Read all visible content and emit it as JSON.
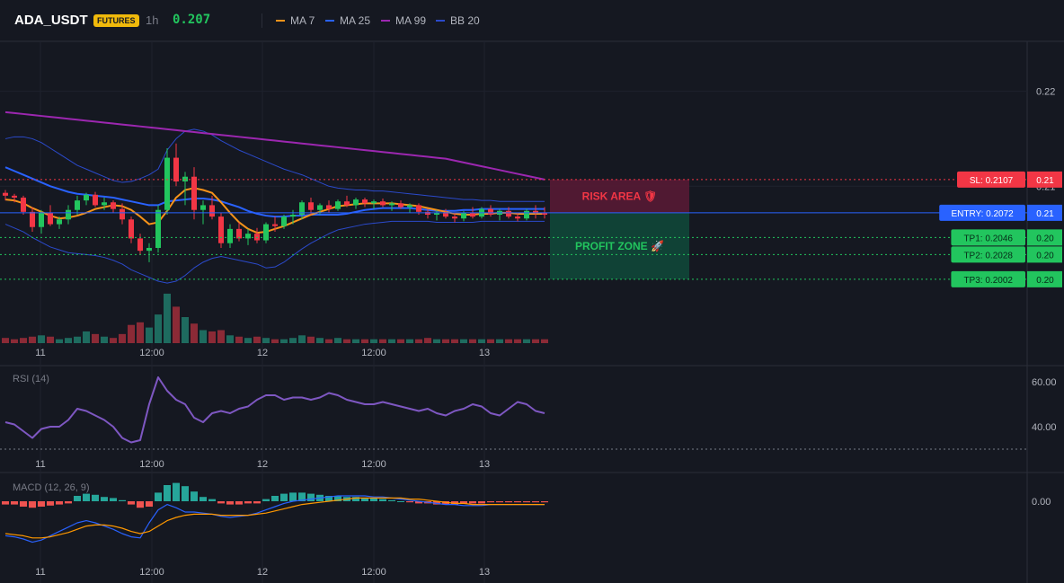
{
  "header": {
    "symbol": "ADA_USDT",
    "badge": "FUTURES",
    "timeframe": "1h",
    "last_price": "0.207",
    "legend": [
      {
        "name": "MA 7",
        "color": "#f7931a"
      },
      {
        "name": "MA 25",
        "color": "#2962ff"
      },
      {
        "name": "MA 99",
        "color": "#9c27b0"
      },
      {
        "name": "BB 20",
        "color": "#2b4acb"
      }
    ]
  },
  "chart_data": [
    {
      "type": "candlestick",
      "title": "ADA_USDT",
      "ylim": [
        0.1965,
        0.2245
      ],
      "price_ticks": [
        "0.22",
        "0.21"
      ],
      "time_ticks": [
        "11",
        "12:00",
        "12",
        "12:00",
        "13"
      ],
      "colors": {
        "up": "#22c55e",
        "down": "#f23645",
        "vol_up": "#1e6b5f",
        "vol_down": "#8b2a36"
      },
      "candles": [
        [
          0.2093,
          0.2096,
          0.2085,
          0.209,
          0.4
        ],
        [
          0.209,
          0.2092,
          0.2083,
          0.2088,
          0.3
        ],
        [
          0.2088,
          0.209,
          0.207,
          0.2073,
          0.4
        ],
        [
          0.2073,
          0.2078,
          0.2052,
          0.2057,
          0.5
        ],
        [
          0.2057,
          0.2075,
          0.205,
          0.2072,
          0.6
        ],
        [
          0.2072,
          0.208,
          0.2058,
          0.206,
          0.5
        ],
        [
          0.206,
          0.2068,
          0.2055,
          0.2065,
          0.3
        ],
        [
          0.2065,
          0.208,
          0.206,
          0.2075,
          0.4
        ],
        [
          0.2075,
          0.209,
          0.207,
          0.2085,
          0.5
        ],
        [
          0.2085,
          0.2093,
          0.208,
          0.2091,
          0.9
        ],
        [
          0.2091,
          0.2094,
          0.2078,
          0.208,
          0.7
        ],
        [
          0.208,
          0.2088,
          0.2075,
          0.2083,
          0.5
        ],
        [
          0.2083,
          0.2085,
          0.2072,
          0.2076,
          0.4
        ],
        [
          0.2076,
          0.2082,
          0.206,
          0.2065,
          0.7
        ],
        [
          0.2065,
          0.2068,
          0.204,
          0.2045,
          1.4
        ],
        [
          0.2045,
          0.205,
          0.2028,
          0.2032,
          1.6
        ],
        [
          0.2032,
          0.204,
          0.202,
          0.2035,
          1.2
        ],
        [
          0.2035,
          0.208,
          0.203,
          0.2075,
          2.2
        ],
        [
          0.2075,
          0.214,
          0.207,
          0.213,
          3.8
        ],
        [
          0.213,
          0.2145,
          0.21,
          0.2105,
          2.8
        ],
        [
          0.2105,
          0.2115,
          0.208,
          0.211,
          2.0
        ],
        [
          0.211,
          0.212,
          0.2065,
          0.2075,
          1.5
        ],
        [
          0.2075,
          0.2085,
          0.206,
          0.208,
          1.0
        ],
        [
          0.208,
          0.209,
          0.2065,
          0.2068,
          0.9
        ],
        [
          0.2068,
          0.2072,
          0.2035,
          0.204,
          1.0
        ],
        [
          0.204,
          0.206,
          0.2035,
          0.2055,
          0.6
        ],
        [
          0.2055,
          0.2062,
          0.2042,
          0.2045,
          0.5
        ],
        [
          0.2045,
          0.2055,
          0.2038,
          0.205,
          0.4
        ],
        [
          0.205,
          0.2056,
          0.204,
          0.2043,
          0.5
        ],
        [
          0.2043,
          0.2062,
          0.204,
          0.206,
          0.4
        ],
        [
          0.206,
          0.2068,
          0.2052,
          0.2058,
          0.3
        ],
        [
          0.2058,
          0.207,
          0.2055,
          0.2068,
          0.3
        ],
        [
          0.2068,
          0.2075,
          0.206,
          0.207,
          0.4
        ],
        [
          0.207,
          0.2085,
          0.2065,
          0.2083,
          0.6
        ],
        [
          0.2083,
          0.2088,
          0.207,
          0.2075,
          0.5
        ],
        [
          0.2075,
          0.2082,
          0.207,
          0.208,
          0.4
        ],
        [
          0.208,
          0.2085,
          0.2072,
          0.2076,
          0.3
        ],
        [
          0.2076,
          0.2086,
          0.2074,
          0.2084,
          0.4
        ],
        [
          0.2084,
          0.209,
          0.2078,
          0.208,
          0.3
        ],
        [
          0.208,
          0.2088,
          0.2076,
          0.2086,
          0.3
        ],
        [
          0.2086,
          0.2088,
          0.2078,
          0.2082,
          0.3
        ],
        [
          0.2082,
          0.2086,
          0.2076,
          0.2084,
          0.3
        ],
        [
          0.2084,
          0.2087,
          0.2078,
          0.208,
          0.3
        ],
        [
          0.208,
          0.2084,
          0.2074,
          0.2082,
          0.3
        ],
        [
          0.2082,
          0.2085,
          0.2076,
          0.2078,
          0.3
        ],
        [
          0.2078,
          0.2082,
          0.2072,
          0.208,
          0.3
        ],
        [
          0.208,
          0.2082,
          0.207,
          0.2073,
          0.3
        ],
        [
          0.2073,
          0.2076,
          0.2066,
          0.207,
          0.4
        ],
        [
          0.207,
          0.2075,
          0.2064,
          0.2072,
          0.3
        ],
        [
          0.2072,
          0.2076,
          0.2066,
          0.2068,
          0.3
        ],
        [
          0.2068,
          0.2072,
          0.2062,
          0.2066,
          0.3
        ],
        [
          0.2066,
          0.2074,
          0.2063,
          0.2072,
          0.3
        ],
        [
          0.2072,
          0.2078,
          0.2066,
          0.2068,
          0.3
        ],
        [
          0.2068,
          0.2078,
          0.2066,
          0.2076,
          0.3
        ],
        [
          0.2076,
          0.208,
          0.2068,
          0.207,
          0.3
        ],
        [
          0.207,
          0.2076,
          0.2064,
          0.2074,
          0.3
        ],
        [
          0.2074,
          0.2078,
          0.2066,
          0.2068,
          0.3
        ],
        [
          0.2068,
          0.2072,
          0.2063,
          0.2066,
          0.3
        ],
        [
          0.2066,
          0.2076,
          0.2064,
          0.2074,
          0.3
        ],
        [
          0.2074,
          0.208,
          0.2066,
          0.2072,
          0.3
        ],
        [
          0.2072,
          0.2078,
          0.2066,
          0.207,
          0.3
        ]
      ],
      "ma7": [
        0.2086,
        0.2085,
        0.2082,
        0.2077,
        0.2073,
        0.2069,
        0.2066,
        0.2067,
        0.2069,
        0.2072,
        0.2076,
        0.2078,
        0.208,
        0.2079,
        0.2075,
        0.2068,
        0.206,
        0.2062,
        0.2074,
        0.2088,
        0.2096,
        0.2098,
        0.2096,
        0.2093,
        0.2083,
        0.2072,
        0.2062,
        0.2055,
        0.2051,
        0.2052,
        0.2055,
        0.2058,
        0.2062,
        0.2066,
        0.207,
        0.2073,
        0.2076,
        0.2079,
        0.208,
        0.2081,
        0.2082,
        0.2082,
        0.2082,
        0.2082,
        0.2081,
        0.208,
        0.2079,
        0.2077,
        0.2075,
        0.2073,
        0.2071,
        0.207,
        0.207,
        0.2071,
        0.2071,
        0.2072,
        0.2072,
        0.2071,
        0.2071,
        0.2071,
        0.2071
      ],
      "ma25": [
        0.212,
        0.2116,
        0.2112,
        0.2108,
        0.2104,
        0.21,
        0.2097,
        0.2094,
        0.2092,
        0.2091,
        0.209,
        0.2089,
        0.2088,
        0.2086,
        0.2084,
        0.2082,
        0.208,
        0.208,
        0.2084,
        0.2085,
        0.2086,
        0.2087,
        0.2087,
        0.2086,
        0.2084,
        0.2081,
        0.2078,
        0.2074,
        0.2071,
        0.2069,
        0.2068,
        0.2068,
        0.2069,
        0.2069,
        0.207,
        0.207,
        0.207,
        0.207,
        0.2071,
        0.2073,
        0.2075,
        0.2076,
        0.2077,
        0.2077,
        0.2077,
        0.2077,
        0.2076,
        0.2075,
        0.2074,
        0.2074,
        0.2074,
        0.2075,
        0.2075,
        0.2076,
        0.2076,
        0.2076,
        0.2076,
        0.2076,
        0.2076,
        0.2076,
        0.2076
      ],
      "ma99": [
        0.2178,
        0.2177,
        0.2176,
        0.2175,
        0.2174,
        0.2173,
        0.2172,
        0.2171,
        0.217,
        0.2169,
        0.2168,
        0.2167,
        0.2166,
        0.2165,
        0.2164,
        0.2163,
        0.2162,
        0.2161,
        0.216,
        0.2159,
        0.2158,
        0.2157,
        0.2156,
        0.2155,
        0.2154,
        0.2153,
        0.2152,
        0.2151,
        0.215,
        0.2149,
        0.2148,
        0.2147,
        0.2146,
        0.2145,
        0.2144,
        0.2143,
        0.2142,
        0.2141,
        0.214,
        0.2139,
        0.2138,
        0.2137,
        0.2136,
        0.2135,
        0.2134,
        0.2133,
        0.2132,
        0.2131,
        0.213,
        0.2129,
        0.2127,
        0.2125,
        0.2123,
        0.2121,
        0.2119,
        0.2117,
        0.2115,
        0.2113,
        0.2111,
        0.2109,
        0.2107
      ],
      "bb_upper": [
        0.215,
        0.2152,
        0.2152,
        0.215,
        0.2146,
        0.214,
        0.2134,
        0.2128,
        0.2122,
        0.2118,
        0.2114,
        0.211,
        0.2106,
        0.2104,
        0.2105,
        0.2108,
        0.2112,
        0.2118,
        0.2138,
        0.215,
        0.2158,
        0.216,
        0.2158,
        0.2154,
        0.2148,
        0.2143,
        0.2138,
        0.2134,
        0.213,
        0.2126,
        0.2122,
        0.2118,
        0.2115,
        0.2112,
        0.2108,
        0.2104,
        0.21,
        0.2098,
        0.2097,
        0.2096,
        0.2096,
        0.2095,
        0.2095,
        0.2094,
        0.2093,
        0.2092,
        0.2091,
        0.209,
        0.2089,
        0.2088,
        0.2087,
        0.2086,
        0.2086,
        0.2085,
        0.2085,
        0.2084,
        0.2084,
        0.2084,
        0.2084,
        0.2084,
        0.2084
      ],
      "bb_lower": [
        0.206,
        0.2056,
        0.2052,
        0.2046,
        0.2041,
        0.2036,
        0.2033,
        0.203,
        0.2029,
        0.2028,
        0.2027,
        0.2025,
        0.2022,
        0.2018,
        0.2012,
        0.2008,
        0.2004,
        0.2,
        0.1998,
        0.2,
        0.2006,
        0.2014,
        0.202,
        0.2024,
        0.2026,
        0.2024,
        0.2022,
        0.202,
        0.2018,
        0.2014,
        0.2015,
        0.202,
        0.2027,
        0.2034,
        0.204,
        0.2045,
        0.205,
        0.2054,
        0.2056,
        0.2058,
        0.206,
        0.2061,
        0.2062,
        0.2063,
        0.2063,
        0.2063,
        0.2063,
        0.2063,
        0.2062,
        0.2062,
        0.2062,
        0.2062,
        0.2062,
        0.2063,
        0.2063,
        0.2063,
        0.2063,
        0.2063,
        0.2063,
        0.2063,
        0.2063
      ],
      "levels": [
        {
          "label": "SL: 0.2107",
          "value": 0.2107,
          "axis": "0.21",
          "color": "#f23645"
        },
        {
          "label": "ENTRY: 0.2072",
          "value": 0.2072,
          "axis": "0.21",
          "color": "#2962ff"
        },
        {
          "label": "TP1: 0.2046",
          "value": 0.2046,
          "axis": "0.20",
          "color": "#22c55e"
        },
        {
          "label": "TP2: 0.2028",
          "value": 0.2028,
          "axis": "0.20",
          "color": "#22c55e"
        },
        {
          "label": "TP3: 0.2002",
          "value": 0.2002,
          "axis": "0.20",
          "color": "#22c55e"
        }
      ],
      "zones": {
        "risk_label": "RISK AREA 🛡",
        "profit_label": "PROFIT ZONE 🚀"
      }
    },
    {
      "type": "line",
      "title": "RSI (14)",
      "ylim": [
        28,
        66
      ],
      "y_ticks": [
        "60.00",
        "40.00"
      ],
      "time_ticks": [
        "11",
        "12:00",
        "12",
        "12:00",
        "13"
      ],
      "values": [
        42,
        41,
        38,
        35,
        39,
        40,
        40,
        43,
        48,
        47,
        45,
        43,
        40,
        35,
        33,
        34,
        50,
        62,
        56,
        52,
        50,
        44,
        42,
        46,
        47,
        46,
        48,
        49,
        52,
        54,
        54,
        52,
        53,
        53,
        52,
        53,
        55,
        54,
        52,
        51,
        50,
        50,
        51,
        50,
        49,
        48,
        47,
        48,
        46,
        45,
        47,
        48,
        50,
        49,
        46,
        45,
        48,
        51,
        50,
        47,
        46
      ]
    },
    {
      "type": "bar",
      "title": "MACD (12, 26, 9)",
      "y_ticks": [
        "0.00"
      ],
      "time_ticks": [
        "11",
        "12:00",
        "12",
        "12:00",
        "13"
      ],
      "histogram": [
        -0.3,
        -0.3,
        -0.5,
        -0.6,
        -0.5,
        -0.4,
        -0.3,
        -0.2,
        0.5,
        0.7,
        0.6,
        0.4,
        0.3,
        0.1,
        -0.3,
        -0.6,
        -0.5,
        0.8,
        1.5,
        1.7,
        1.4,
        0.9,
        0.4,
        0.2,
        -0.2,
        -0.3,
        -0.3,
        -0.2,
        -0.2,
        0.2,
        0.5,
        0.7,
        0.8,
        0.8,
        0.7,
        0.6,
        0.5,
        0.5,
        0.4,
        0.4,
        0.3,
        0.3,
        0.2,
        0.1,
        0.0,
        -0.1,
        -0.2,
        -0.2,
        -0.3,
        -0.3,
        -0.3,
        -0.2,
        -0.2,
        -0.2,
        -0.1,
        -0.1,
        -0.1,
        -0.1,
        -0.1,
        -0.1,
        -0.1
      ],
      "macd": [
        -3.2,
        -3.3,
        -3.5,
        -3.8,
        -3.6,
        -3.2,
        -2.8,
        -2.4,
        -2.0,
        -1.8,
        -2.0,
        -2.3,
        -2.6,
        -3.0,
        -3.3,
        -3.4,
        -2.0,
        -0.8,
        -0.3,
        -0.6,
        -1.0,
        -1.0,
        -1.1,
        -1.2,
        -1.4,
        -1.5,
        -1.4,
        -1.3,
        -1.1,
        -0.8,
        -0.5,
        -0.2,
        0.0,
        0.1,
        0.2,
        0.3,
        0.4,
        0.5,
        0.5,
        0.5,
        0.5,
        0.4,
        0.4,
        0.3,
        0.2,
        0.1,
        0.0,
        -0.1,
        -0.2,
        -0.3,
        -0.3,
        -0.4,
        -0.4,
        -0.4,
        -0.3,
        -0.3,
        -0.3,
        -0.3,
        -0.3,
        -0.3,
        -0.3
      ],
      "signal": [
        -3.0,
        -3.1,
        -3.2,
        -3.4,
        -3.4,
        -3.3,
        -3.1,
        -2.9,
        -2.6,
        -2.3,
        -2.2,
        -2.2,
        -2.3,
        -2.5,
        -2.8,
        -3.0,
        -2.8,
        -2.3,
        -1.8,
        -1.5,
        -1.3,
        -1.2,
        -1.2,
        -1.2,
        -1.3,
        -1.3,
        -1.3,
        -1.3,
        -1.2,
        -1.1,
        -0.9,
        -0.7,
        -0.5,
        -0.3,
        -0.2,
        -0.1,
        0.0,
        0.1,
        0.2,
        0.3,
        0.3,
        0.3,
        0.3,
        0.3,
        0.3,
        0.2,
        0.2,
        0.1,
        0.0,
        -0.1,
        -0.2,
        -0.2,
        -0.3,
        -0.3,
        -0.3,
        -0.3,
        -0.3,
        -0.3,
        -0.3,
        -0.3,
        -0.3
      ],
      "colors": {
        "hist_pos": "#26a69a",
        "hist_neg": "#ef5350",
        "macd": "#2962ff",
        "signal": "#ff9800"
      }
    }
  ]
}
